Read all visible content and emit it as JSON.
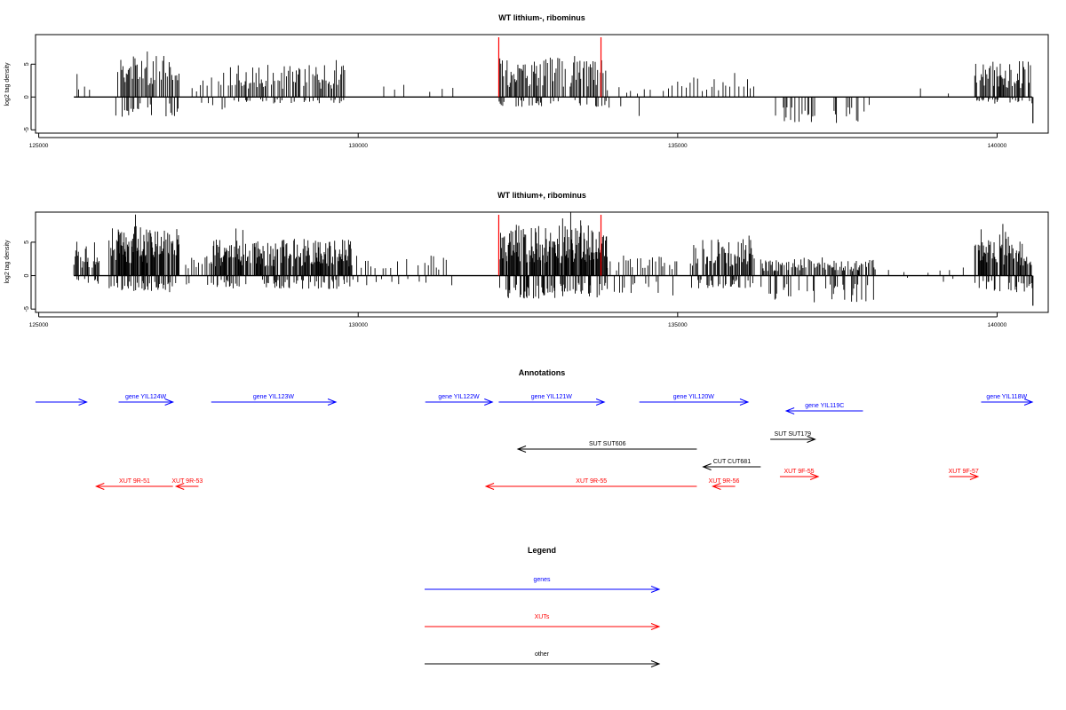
{
  "colors": {
    "genes": "#0000ff",
    "xuts": "#ff0000",
    "other": "#000000",
    "marker": "#ff0000"
  },
  "chart_data": [
    {
      "type": "bar",
      "title": "WT lithium-, ribominus",
      "ylabel": "log2 tag density",
      "xlim": [
        124950,
        140800
      ],
      "ylim": [
        -5.5,
        9.5
      ],
      "xticks": [
        125000,
        130000,
        135000,
        140000
      ],
      "yticks": [
        -5,
        0,
        5
      ],
      "markers": [
        132200,
        133800
      ],
      "segments": [
        {
          "x": [
            125600,
            125800
          ],
          "pos": 4,
          "neg": 0,
          "step": 40
        },
        {
          "x": [
            126200,
            127200
          ],
          "pos": 6,
          "neg": 3,
          "step": 22
        },
        {
          "x": [
            127400,
            128000
          ],
          "pos": 3,
          "neg": 2,
          "step": 60
        },
        {
          "x": [
            128000,
            129800
          ],
          "pos": 5,
          "neg": 1,
          "step": 22
        },
        {
          "x": [
            130400,
            131500
          ],
          "pos": 2,
          "neg": 0,
          "step": 180
        },
        {
          "x": [
            132200,
            133900
          ],
          "pos": 6,
          "neg": 1.5,
          "step": 20
        },
        {
          "x": [
            133900,
            135000
          ],
          "pos": 2,
          "neg": 3,
          "step": 90
        },
        {
          "x": [
            135000,
            136200
          ],
          "pos": 3,
          "neg": 0,
          "step": 60
        },
        {
          "x": [
            136500,
            138000
          ],
          "pos": 0,
          "neg": 4,
          "step": 22
        },
        {
          "x": [
            138800,
            139500
          ],
          "pos": 2,
          "neg": 0,
          "step": 250
        },
        {
          "x": [
            139650,
            140550
          ],
          "pos": 5.5,
          "neg": 1,
          "step": 15
        }
      ],
      "end_dip": -4
    },
    {
      "type": "bar",
      "title": "WT lithium+, ribominus",
      "ylabel": "log2 tag density",
      "xlim": [
        124950,
        140800
      ],
      "ylim": [
        -5.5,
        9.5
      ],
      "xticks": [
        125000,
        130000,
        135000,
        140000
      ],
      "yticks": [
        -5,
        0,
        5
      ],
      "markers": [
        132200,
        133800
      ],
      "segments": [
        {
          "x": [
            125550,
            125950
          ],
          "pos": 4.5,
          "neg": 1.5,
          "step": 15
        },
        {
          "x": [
            126100,
            127200
          ],
          "pos": 7.5,
          "neg": 2.5,
          "step": 10
        },
        {
          "x": [
            127300,
            127700
          ],
          "pos": 3,
          "neg": 2,
          "step": 40
        },
        {
          "x": [
            127700,
            129900
          ],
          "pos": 5.5,
          "neg": 2,
          "step": 12
        },
        {
          "x": [
            129900,
            131500
          ],
          "pos": 3,
          "neg": 1.5,
          "step": 60
        },
        {
          "x": [
            132200,
            133900
          ],
          "pos": 7.5,
          "neg": 3.5,
          "step": 10
        },
        {
          "x": [
            133900,
            135000
          ],
          "pos": 3,
          "neg": 3,
          "step": 40
        },
        {
          "x": [
            135200,
            136200
          ],
          "pos": 5.5,
          "neg": 2,
          "step": 15
        },
        {
          "x": [
            136300,
            138100
          ],
          "pos": 2.5,
          "neg": 4,
          "step": 18
        },
        {
          "x": [
            138300,
            139500
          ],
          "pos": 1,
          "neg": 1,
          "step": 180
        },
        {
          "x": [
            139650,
            140550
          ],
          "pos": 6,
          "neg": 2.5,
          "step": 12
        }
      ],
      "end_dip": -4.5
    }
  ],
  "annotations": {
    "title": "Annotations",
    "items": [
      {
        "label": "gene YIL124W",
        "start": 126250,
        "end": 127100,
        "row": 0,
        "kind": "genes"
      },
      {
        "label": "gene YIL123W",
        "start": 127700,
        "end": 129650,
        "row": 0,
        "kind": "genes"
      },
      {
        "label": "gene YIL122W",
        "start": 131050,
        "end": 132100,
        "row": 0,
        "kind": "genes"
      },
      {
        "label": "gene YIL121W",
        "start": 132200,
        "end": 133850,
        "row": 0,
        "kind": "genes"
      },
      {
        "label": "gene YIL120W",
        "start": 134400,
        "end": 136100,
        "row": 0,
        "kind": "genes"
      },
      {
        "label": "gene YIL118W",
        "start": 139750,
        "end": 140550,
        "row": 0,
        "kind": "genes"
      },
      {
        "label": "",
        "start": 124950,
        "end": 125750,
        "row": 0,
        "kind": "genes"
      },
      {
        "label": "gene YIL119C",
        "start": 137900,
        "end": 136700,
        "row": 1,
        "kind": "genes"
      },
      {
        "label": "SUT SUT179",
        "start": 136450,
        "end": 137150,
        "row": 2,
        "kind": "other"
      },
      {
        "label": "SUT SUT606",
        "start": 135300,
        "end": 132500,
        "row": 3,
        "kind": "other"
      },
      {
        "label": "CUT CUT681",
        "start": 136300,
        "end": 135400,
        "row": 4,
        "kind": "other"
      },
      {
        "label": "XUT 9F-55",
        "start": 136600,
        "end": 137200,
        "row": 5,
        "kind": "xuts"
      },
      {
        "label": "XUT 9F-57",
        "start": 139250,
        "end": 139700,
        "row": 5,
        "kind": "xuts"
      },
      {
        "label": "XUT 9R-51",
        "start": 127100,
        "end": 125900,
        "row": 6,
        "kind": "xuts"
      },
      {
        "label": "XUT 9R-53",
        "start": 127500,
        "end": 127150,
        "row": 6,
        "kind": "xuts"
      },
      {
        "label": "XUT 9R-55",
        "start": 135300,
        "end": 132000,
        "row": 6,
        "kind": "xuts"
      },
      {
        "label": "XUT 9R-56",
        "start": 135900,
        "end": 135550,
        "row": 6,
        "kind": "xuts"
      }
    ]
  },
  "legend": {
    "title": "Legend",
    "items": [
      {
        "label": "genes",
        "kind": "genes"
      },
      {
        "label": "XUTs",
        "kind": "xuts"
      },
      {
        "label": "other",
        "kind": "other"
      }
    ]
  }
}
